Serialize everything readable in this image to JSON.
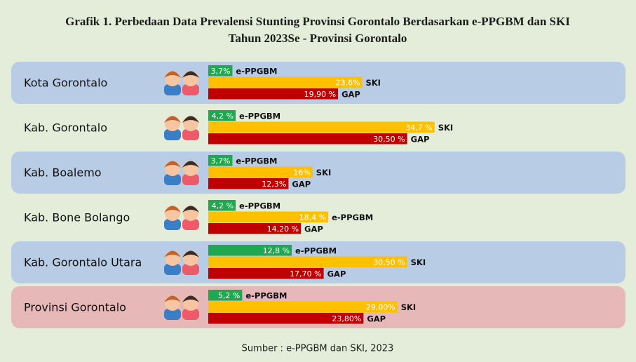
{
  "chart_data": {
    "type": "bar",
    "orientation": "horizontal",
    "title": "Grafik 1. Perbedaan Data Prevalensi Stunting Provinsi Gorontalo Berdasarkan e-PPGBM dan SKI",
    "subtitle": "Tahun 2023Se - Provinsi Gorontalo",
    "source": "Sumber : e-PPGBM dan SKI, 2023",
    "categories": [
      "Kota Gorontalo",
      "Kab. Gorontalo",
      "Kab. Boalemo",
      "Kab. Bone Bolango",
      "Kab. Gorontalo Utara",
      "Provinsi Gorontalo"
    ],
    "row_colors": [
      "#b8cce6",
      null,
      "#b8cce6",
      null,
      "#b8cce6",
      "#e6b9b8"
    ],
    "series": [
      {
        "color": "#1fa84f",
        "values": [
          3.7,
          4.2,
          3.7,
          4.2,
          12.8,
          5.2
        ],
        "value_labels": [
          "3,7%",
          "4,2 %",
          "3,7%",
          "4,2 %",
          "12,8 %",
          "5,2 %"
        ]
      },
      {
        "color": "#ffc000",
        "values": [
          23.6,
          34.7,
          16,
          18.4,
          30.5,
          29
        ],
        "value_labels": [
          "23,6%",
          "34,7 %",
          "16%",
          "18,4 %",
          "30,50 %",
          "29,00%"
        ]
      },
      {
        "color": "#c00000",
        "values": [
          19.9,
          30.5,
          12.3,
          14.2,
          17.7,
          23.8
        ],
        "value_labels": [
          "19,90 %",
          "30,50 %",
          "12,3%",
          "14,20 %",
          "17,70 %",
          "23,80%"
        ]
      }
    ],
    "tags": [
      [
        "e-PPGBM",
        "SKI",
        "GAP"
      ],
      [
        "e-PPGBM",
        "SKI",
        "GAP"
      ],
      [
        "e-PPGBM",
        "SKI",
        "GAP"
      ],
      [
        "e-PPGBM",
        "e-PPGBM",
        "GAP"
      ],
      [
        "e-PPGBM",
        "SKI",
        "GAP"
      ],
      [
        "e-PPGBM",
        "SKI",
        "GAP"
      ]
    ]
  }
}
